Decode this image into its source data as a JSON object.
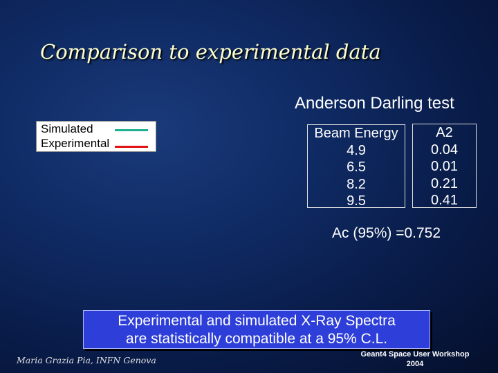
{
  "slide": {
    "title": "Comparison to experimental data",
    "subtitle": "Anderson Darling test"
  },
  "legend": {
    "items": [
      {
        "label": "Simulated",
        "color": "#20b090"
      },
      {
        "label": "Experimental",
        "color": "#e01010"
      }
    ]
  },
  "table": {
    "beam_header": "Beam Energy",
    "a2_header": "A2",
    "rows": [
      {
        "beam": "4.9",
        "a2": "0.04"
      },
      {
        "beam": "6.5",
        "a2": "0.01"
      },
      {
        "beam": "8.2",
        "a2": "0.21"
      },
      {
        "beam": "9.5",
        "a2": "0.41"
      }
    ]
  },
  "critical_value": "Ac (95%) =0.752",
  "conclusion": {
    "line1": "Experimental and simulated X-Ray Spectra",
    "line2": "are statistically compatible at a 95% C.L."
  },
  "footer": {
    "author": "Maria Grazia Pia, INFN Genova",
    "conference_line1": "Geant4 Space User Workshop",
    "conference_line2": "2004"
  }
}
